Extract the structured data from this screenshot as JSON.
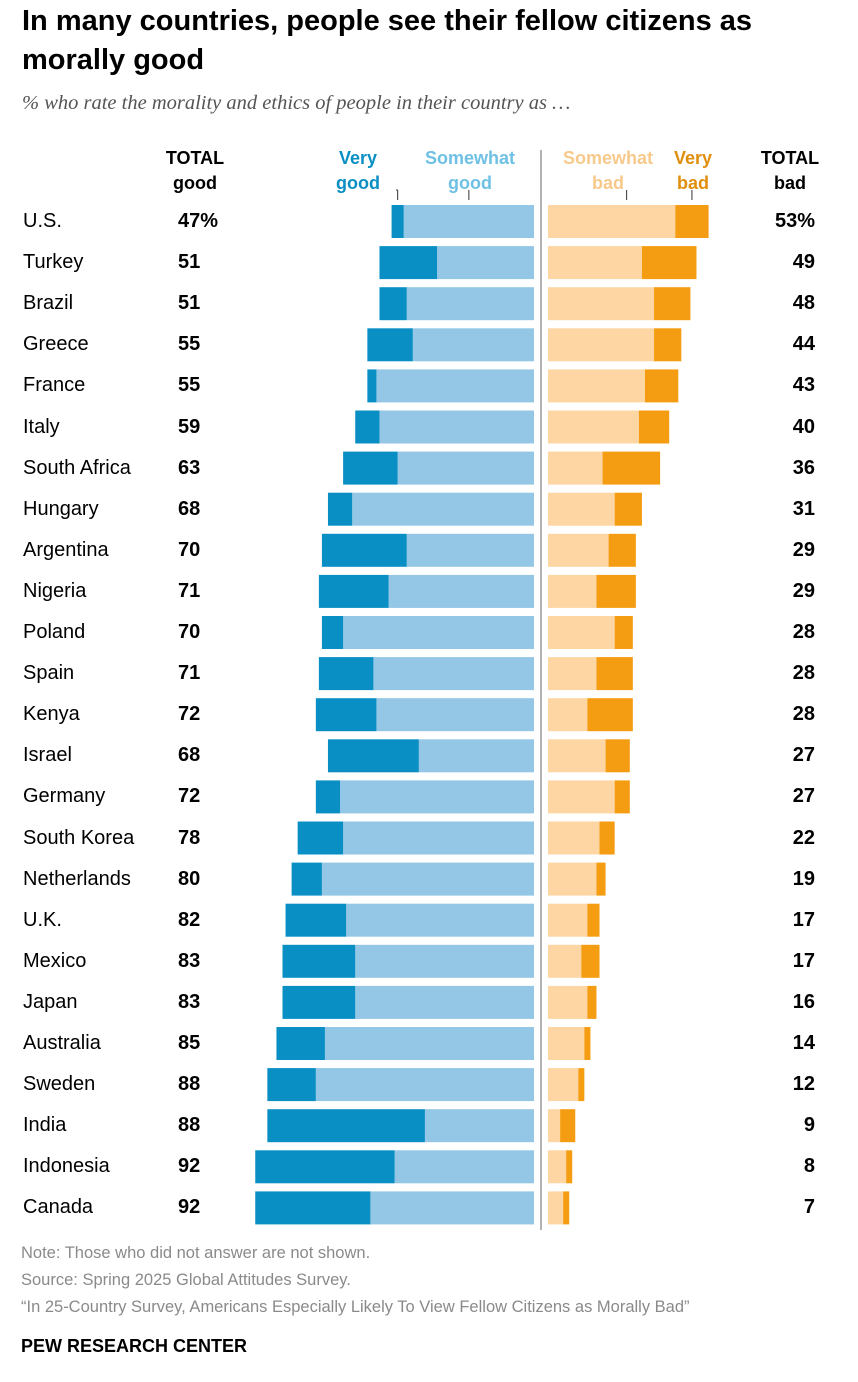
{
  "title": "In many countries, people see their fellow citizens as morally good",
  "subtitle": "% who rate the morality and ethics of people in their country as …",
  "headers": {
    "total_good": "TOTAL\ngood",
    "very_good": "Very\ngood",
    "somewhat_good": "Somewhat\ngood",
    "somewhat_bad": "Somewhat\nbad",
    "very_bad": "Very\nbad",
    "total_bad": "TOTAL\nbad"
  },
  "colors": {
    "very_good": "#0a8fc4",
    "somewhat_good": "#93c7e5",
    "somewhat_bad": "#fdd6a4",
    "very_bad": "#f59d12",
    "divider": "#9a9a9a"
  },
  "chart_data": {
    "type": "bar",
    "orientation": "horizontal diverging stacked",
    "categories": [
      "U.S.",
      "Turkey",
      "Brazil",
      "Greece",
      "France",
      "Italy",
      "South Africa",
      "Hungary",
      "Argentina",
      "Nigeria",
      "Poland",
      "Spain",
      "Kenya",
      "Israel",
      "Germany",
      "South Korea",
      "Netherlands",
      "U.K.",
      "Mexico",
      "Japan",
      "Australia",
      "Sweden",
      "India",
      "Indonesia",
      "Canada"
    ],
    "total_good_labels": [
      "47%",
      "51",
      "51",
      "55",
      "55",
      "59",
      "63",
      "68",
      "70",
      "71",
      "70",
      "71",
      "72",
      "68",
      "72",
      "78",
      "80",
      "82",
      "83",
      "83",
      "85",
      "88",
      "88",
      "92",
      "92"
    ],
    "total_bad_labels": [
      "53%",
      "49",
      "48",
      "44",
      "43",
      "40",
      "36",
      "31",
      "29",
      "29",
      "28",
      "28",
      "28",
      "27",
      "27",
      "22",
      "19",
      "17",
      "17",
      "16",
      "14",
      "12",
      "9",
      "8",
      "7"
    ],
    "series": [
      {
        "name": "Very good",
        "values": [
          4,
          19,
          9,
          15,
          3,
          8,
          18,
          8,
          28,
          23,
          7,
          18,
          20,
          30,
          8,
          15,
          10,
          20,
          24,
          24,
          16,
          16,
          52,
          46,
          38
        ]
      },
      {
        "name": "Somewhat good",
        "values": [
          43,
          32,
          42,
          40,
          52,
          51,
          45,
          60,
          42,
          48,
          63,
          53,
          52,
          38,
          64,
          63,
          70,
          62,
          59,
          59,
          69,
          72,
          36,
          46,
          54
        ]
      },
      {
        "name": "Somewhat bad",
        "values": [
          42,
          31,
          35,
          35,
          32,
          30,
          18,
          22,
          20,
          16,
          22,
          16,
          13,
          19,
          22,
          17,
          16,
          13,
          11,
          13,
          12,
          10,
          4,
          6,
          5
        ]
      },
      {
        "name": "Very bad",
        "values": [
          11,
          18,
          12,
          9,
          11,
          10,
          19,
          9,
          9,
          13,
          6,
          12,
          15,
          8,
          5,
          5,
          3,
          4,
          6,
          3,
          2,
          2,
          5,
          2,
          2
        ]
      }
    ],
    "legend": "top"
  },
  "notes": {
    "note": "Note: Those who did not answer are not shown.",
    "source": "Source: Spring 2025 Global Attitudes Survey.",
    "report": "“In 25-Country Survey, Americans Especially Likely To View Fellow Citizens as Morally Bad”"
  },
  "brand": "PEW RESEARCH CENTER"
}
